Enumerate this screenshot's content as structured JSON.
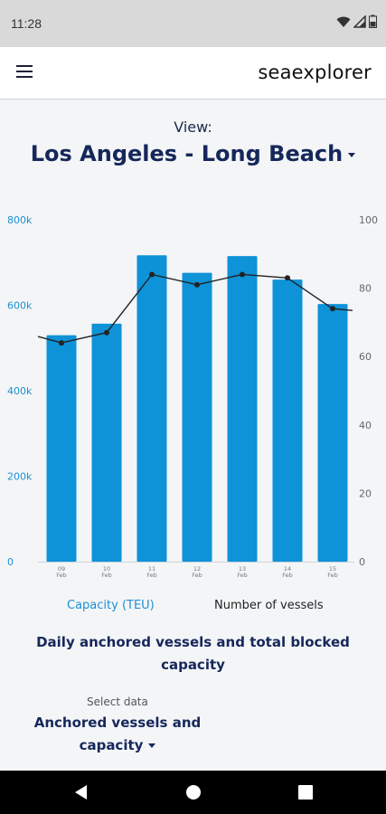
{
  "status": {
    "time": "11:28"
  },
  "app": {
    "brand": "seaexplorer"
  },
  "view": {
    "label": "View:",
    "port": "Los Angeles - Long Beach"
  },
  "chart_data": {
    "type": "bar",
    "categories": [
      [
        "09",
        "Feb"
      ],
      [
        "10",
        "Feb"
      ],
      [
        "11",
        "Feb"
      ],
      [
        "12",
        "Feb"
      ],
      [
        "13",
        "Feb"
      ],
      [
        "14",
        "Feb"
      ],
      [
        "15",
        "Feb"
      ]
    ],
    "series": [
      {
        "name": "Capacity (TEU)",
        "type": "bar",
        "axis": "left",
        "color": "#0e92d8",
        "values": [
          530000,
          557000,
          717000,
          676000,
          715000,
          660000,
          603000
        ]
      },
      {
        "name": "Number of vessels",
        "type": "line",
        "axis": "right",
        "color": "#222222",
        "values": [
          64,
          67,
          84,
          81,
          84,
          83,
          74
        ]
      }
    ],
    "left_axis": {
      "ticks": [
        "0",
        "200k",
        "400k",
        "600k",
        "800k"
      ],
      "range": [
        0,
        800000
      ],
      "color": "#1e8fd3"
    },
    "right_axis": {
      "ticks": [
        "0",
        "20",
        "40",
        "60",
        "80",
        "100"
      ],
      "range": [
        0,
        100
      ],
      "color": "#666666"
    },
    "title": "Daily anchored vessels and total blocked capacity"
  },
  "legend": {
    "capacity": "Capacity (TEU)",
    "vessels": "Number of vessels"
  },
  "subtitle": "Daily anchored vessels and total blocked capacity",
  "select": {
    "label": "Select data",
    "value": "Anchored vessels and capacity"
  }
}
